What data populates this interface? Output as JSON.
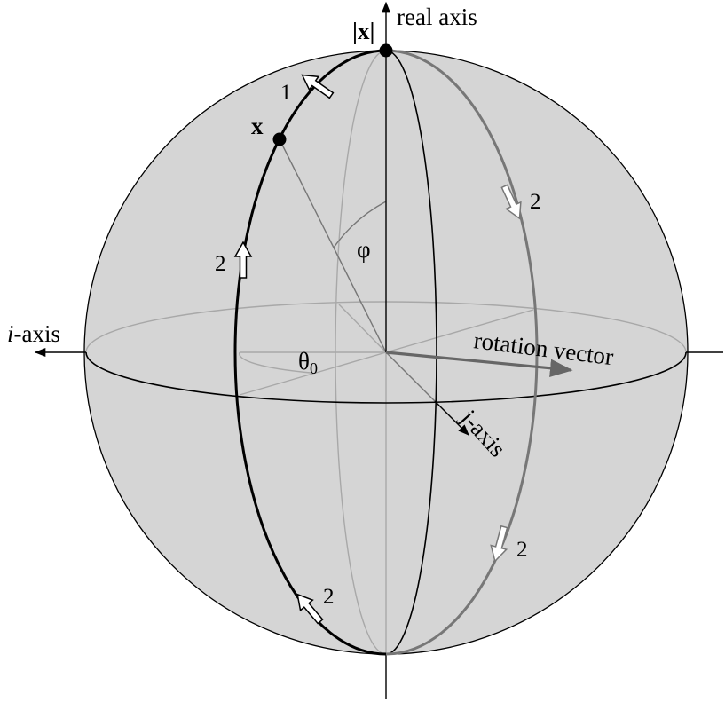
{
  "labels": {
    "real_axis": "real axis",
    "i_axis_italic": "i",
    "i_axis_suffix": "-axis",
    "j_axis": "j-axis",
    "rotation_vector": "rotation vector",
    "abs_x": "|x|",
    "x": "x",
    "phi": "φ",
    "theta0": "θ",
    "theta0_sub": "0",
    "step1": "1",
    "step2": "2"
  },
  "colors": {
    "sphere_fill": "#d3d3d3",
    "dark_stroke": "#000000",
    "gray_stroke": "#777777",
    "light_stroke": "#a8a8a8",
    "rotation_arrow": "#666666"
  }
}
